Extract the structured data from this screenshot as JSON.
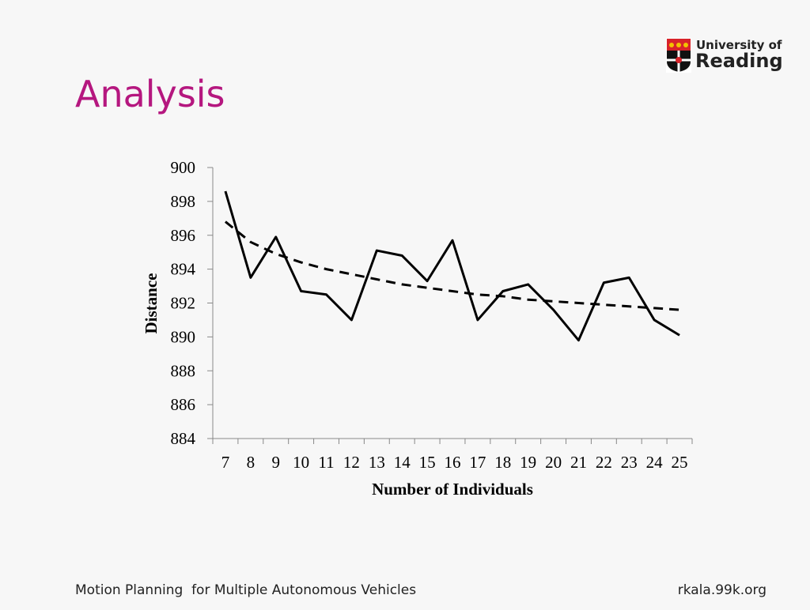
{
  "slide": {
    "title": "Analysis",
    "footer_left": "Motion Planning  for Multiple Autonomous Vehicles",
    "footer_right": "rkala.99k.org"
  },
  "logo": {
    "line1": "University of",
    "line2": "Reading",
    "colors": {
      "shield_red": "#d8232a",
      "shield_gold": "#f2c200",
      "text": "#222222"
    }
  },
  "colors": {
    "title": "#b5177f",
    "background": "#f7f7f7",
    "series": "#000000"
  },
  "chart_data": {
    "type": "line",
    "title": "",
    "xlabel": "Number of Individuals",
    "ylabel": "Distance",
    "categories": [
      "7",
      "8",
      "9",
      "10",
      "11",
      "12",
      "13",
      "14",
      "15",
      "16",
      "17",
      "18",
      "19",
      "20",
      "21",
      "22",
      "23",
      "24",
      "25"
    ],
    "ylim": [
      884,
      900
    ],
    "yticks": [
      "884",
      "886",
      "888",
      "890",
      "892",
      "894",
      "896",
      "898",
      "900"
    ],
    "grid": false,
    "legend": "none",
    "series": [
      {
        "style": "solid",
        "values": [
          898.6,
          893.5,
          895.9,
          892.7,
          892.5,
          891.0,
          895.1,
          894.8,
          893.3,
          895.7,
          891.0,
          892.7,
          893.1,
          891.6,
          889.8,
          893.2,
          893.5,
          891.0,
          890.1
        ]
      },
      {
        "style": "dashed",
        "values": [
          896.8,
          895.6,
          894.9,
          894.4,
          894.0,
          893.7,
          893.4,
          893.1,
          892.9,
          892.7,
          892.5,
          892.4,
          892.2,
          892.1,
          892.0,
          891.9,
          891.8,
          891.7,
          891.6
        ]
      }
    ]
  }
}
